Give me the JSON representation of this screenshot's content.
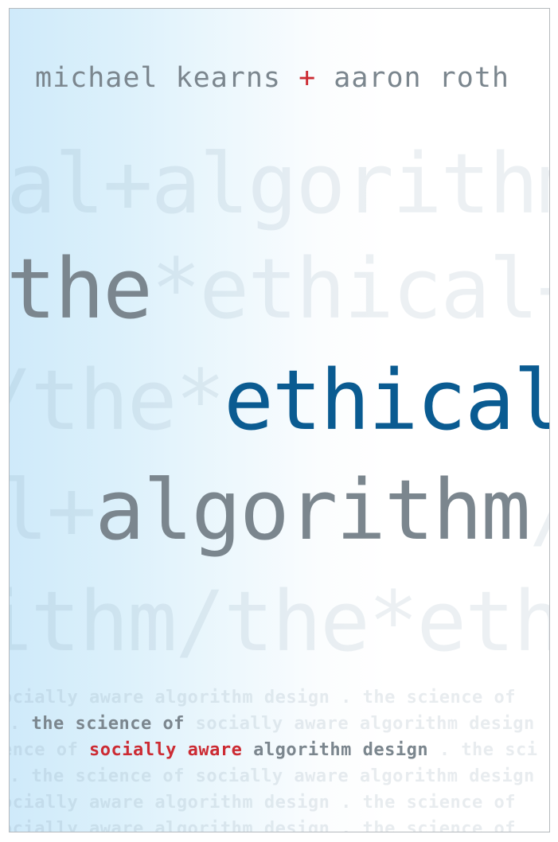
{
  "cover": {
    "author_1": "michael kearns",
    "author_sep": "+",
    "author_2": "aaron roth",
    "title_1": "the",
    "title_2": "ethical",
    "title_3": "algorithm",
    "subtitle_prefix": "the science of",
    "subtitle_highlight": "socially aware",
    "subtitle_suffix": "algorithm design",
    "bg_row_1": "al+algorithm",
    "bg_row_2_tail": "*ethical+",
    "bg_row_3_head": "/the*",
    "bg_row_4_head": "l+",
    "bg_row_4_tail": "/",
    "bg_row_5": "ithm/the*eth",
    "pattern_line_a": "ocially aware algorithm design . the science of",
    "pattern_line_b_lead": ". ",
    "pattern_line_b_tail": " socially aware algorithm design",
    "pattern_line_c_lead": "ence of ",
    "pattern_line_c_tail": " . the sci",
    "pattern_line_d": ". the science of socially aware algorithm design",
    "pattern_line_e": "ocially aware algorithm design . the science of",
    "pattern_line_f": "ocially aware algorithm design . the science of"
  },
  "colors": {
    "gray_text": "#7b868e",
    "blue_title": "#0a5b91",
    "red_accent": "#cc2b33",
    "gradient_left": "#cfeafa"
  }
}
